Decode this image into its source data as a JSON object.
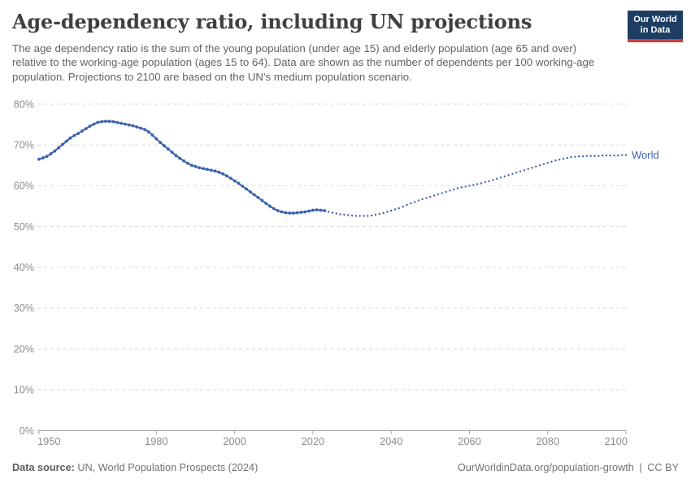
{
  "header": {
    "title": "Age-dependency ratio, including UN projections",
    "subtitle": "The age dependency ratio is the sum of the young population (under age 15) and elderly population (age 65 and over) relative to the working-age population (ages 15 to 64). Data are shown as the number of dependents per 100 working-age population. Projections to 2100 are based on the UN's medium population scenario.",
    "logo": {
      "line1": "Our World",
      "line2": "in Data",
      "bg_color": "#1d3d63",
      "stripe_color": "#cf3d3d"
    }
  },
  "chart_data": {
    "type": "line",
    "title": "Age-dependency ratio, including UN projections",
    "xlabel": "",
    "ylabel": "",
    "xlim": [
      1950,
      2100
    ],
    "ylim": [
      0,
      80
    ],
    "grid": "horizontal-dashed",
    "legend_position": "end-of-line-label",
    "x_ticks": [
      {
        "value": 1950,
        "label": "1950"
      },
      {
        "value": 1980,
        "label": "1980"
      },
      {
        "value": 2000,
        "label": "2000"
      },
      {
        "value": 2020,
        "label": "2020"
      },
      {
        "value": 2040,
        "label": "2040"
      },
      {
        "value": 2060,
        "label": "2060"
      },
      {
        "value": 2080,
        "label": "2080"
      },
      {
        "value": 2100,
        "label": "2100"
      }
    ],
    "y_ticks": [
      {
        "value": 0,
        "label": "0%"
      },
      {
        "value": 10,
        "label": "10%"
      },
      {
        "value": 20,
        "label": "20%"
      },
      {
        "value": 30,
        "label": "30%"
      },
      {
        "value": 40,
        "label": "40%"
      },
      {
        "value": 50,
        "label": "50%"
      },
      {
        "value": 60,
        "label": "60%"
      },
      {
        "value": 70,
        "label": "70%"
      },
      {
        "value": 80,
        "label": "80%"
      }
    ],
    "colors": {
      "series": "#3b63ad",
      "grid": "#dadada",
      "axis": "#a8a8a8",
      "axis_text": "#8c8c8c"
    },
    "series": [
      {
        "name": "World",
        "color": "#3b63ad",
        "historical": {
          "style": "solid-with-markers",
          "start_year": 1950,
          "end_year": 2023,
          "values": [
            66.5,
            66.8,
            67.2,
            67.8,
            68.5,
            69.3,
            70.1,
            70.9,
            71.7,
            72.3,
            72.8,
            73.4,
            74.0,
            74.6,
            75.1,
            75.5,
            75.7,
            75.8,
            75.8,
            75.7,
            75.5,
            75.3,
            75.1,
            74.9,
            74.7,
            74.4,
            74.1,
            73.8,
            73.2,
            72.4,
            71.5,
            70.6,
            69.8,
            69.0,
            68.2,
            67.4,
            66.7,
            66.1,
            65.5,
            65.0,
            64.7,
            64.4,
            64.2,
            64.0,
            63.8,
            63.6,
            63.3,
            62.9,
            62.4,
            61.8,
            61.2,
            60.6,
            59.9,
            59.2,
            58.5,
            57.8,
            57.1,
            56.4,
            55.7,
            55.0,
            54.4,
            53.9,
            53.6,
            53.4,
            53.3,
            53.3,
            53.4,
            53.5,
            53.6,
            53.8,
            54.0,
            54.1,
            54.0,
            53.9
          ]
        },
        "projection": {
          "style": "dotted",
          "start_year": 2023,
          "end_year": 2100,
          "values": [
            53.9,
            53.6,
            53.4,
            53.2,
            53.0,
            52.9,
            52.8,
            52.7,
            52.6,
            52.6,
            52.6,
            52.6,
            52.7,
            52.9,
            53.1,
            53.3,
            53.6,
            53.9,
            54.2,
            54.5,
            54.9,
            55.3,
            55.7,
            56.0,
            56.4,
            56.7,
            57.0,
            57.3,
            57.6,
            57.9,
            58.2,
            58.5,
            58.8,
            59.1,
            59.4,
            59.6,
            59.8,
            60.0,
            60.2,
            60.4,
            60.6,
            60.9,
            61.1,
            61.4,
            61.7,
            62.0,
            62.3,
            62.6,
            62.9,
            63.2,
            63.5,
            63.8,
            64.1,
            64.4,
            64.7,
            65.0,
            65.3,
            65.6,
            65.9,
            66.2,
            66.4,
            66.6,
            66.8,
            67.0,
            67.1,
            67.2,
            67.2,
            67.3,
            67.3,
            67.3,
            67.3,
            67.4,
            67.4,
            67.4,
            67.4,
            67.4,
            67.5,
            67.5
          ]
        }
      }
    ]
  },
  "footer": {
    "source_label": "Data source:",
    "source_value": "UN, World Population Prospects (2024)",
    "link": "OurWorldinData.org/population-growth",
    "separator": "|",
    "license": "CC BY"
  }
}
